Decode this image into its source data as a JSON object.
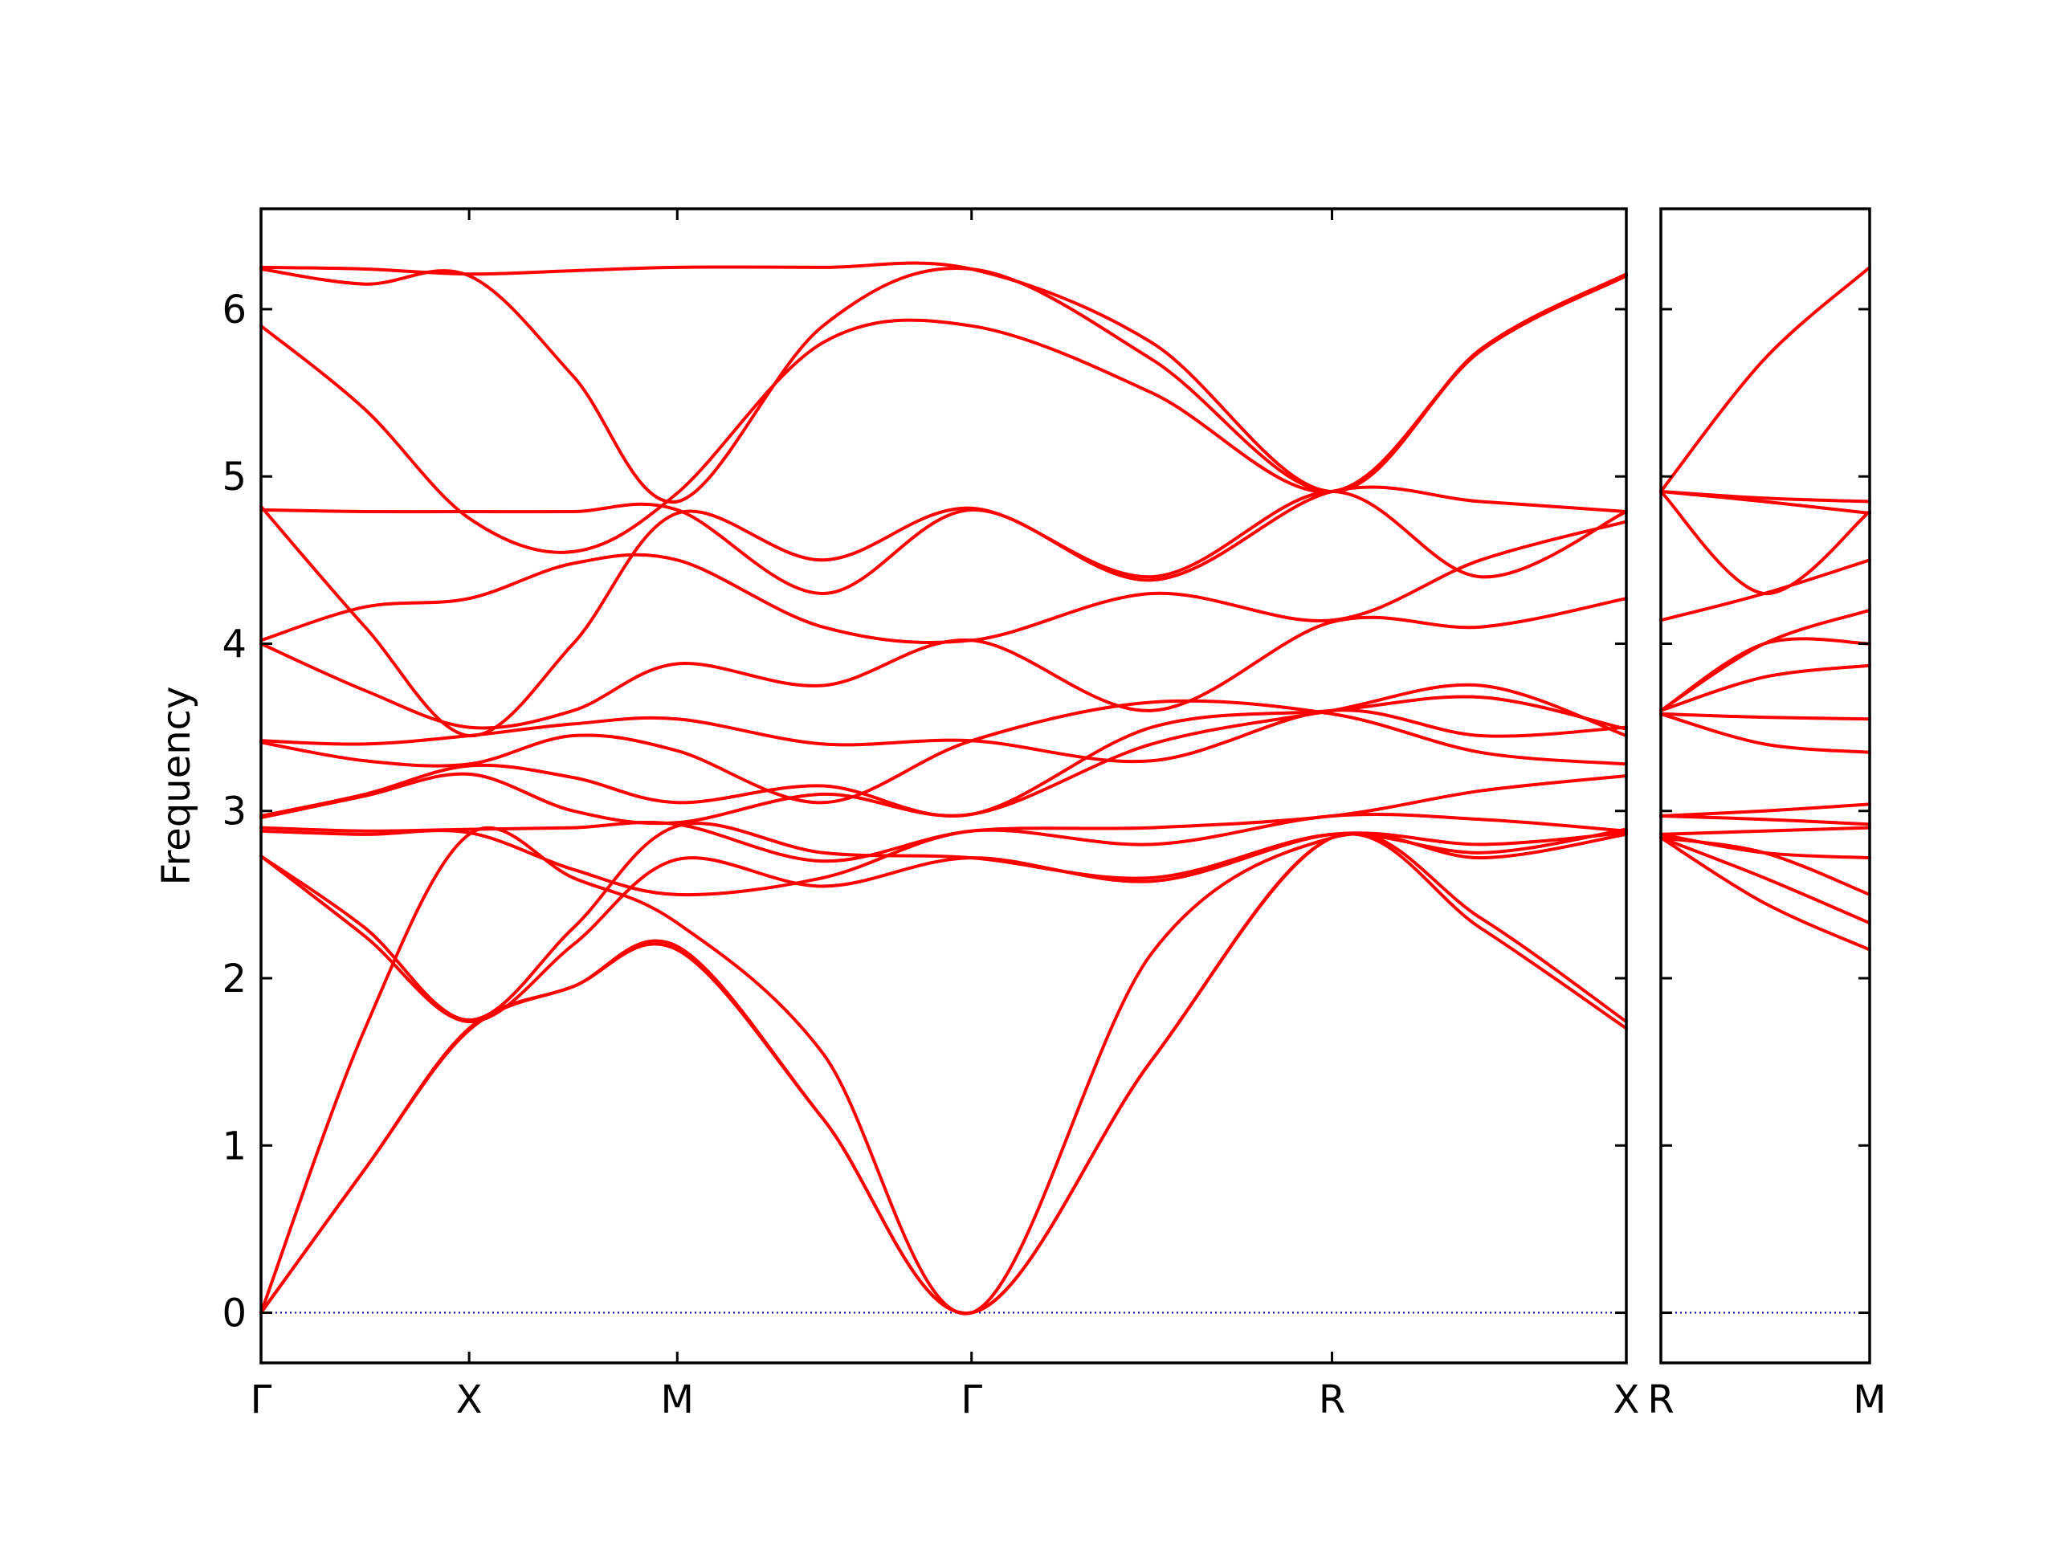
{
  "chart_data": {
    "type": "line",
    "title": "",
    "xlabel": "",
    "ylabel": "Frequency",
    "ylim": [
      -0.3,
      6.6
    ],
    "yticks": [
      0,
      1,
      2,
      3,
      4,
      5,
      6
    ],
    "grid": false,
    "legend": "none",
    "colors": {
      "bands": "#ff0000",
      "zero_line": "#0000aa",
      "frame": "#000000"
    },
    "panels": [
      {
        "name": "",
        "kpoints": [
          {
            "label": "Γ",
            "x": 0
          },
          {
            "label": "X",
            "x": 0.5
          },
          {
            "label": "M",
            "x": 1.0
          },
          {
            "label": "Γ",
            "x": 1.7071
          },
          {
            "label": "R",
            "x": 2.5731
          },
          {
            "label": "X",
            "x": 3.2802
          }
        ],
        "series": [
          {
            "x": [
              0,
              0.25,
              0.5,
              0.75,
              1.0,
              1.35,
              1.7071,
              2.14,
              2.5731,
              2.93,
              3.2802
            ],
            "y": [
              0,
              0.86,
              1.69,
              1.95,
              2.17,
              1.16,
              0,
              1.51,
              2.84,
              2.3,
              1.7
            ]
          },
          {
            "x": [
              0,
              0.25,
              0.5,
              0.75,
              1.0,
              1.35,
              1.7071,
              2.14,
              2.5731,
              2.93,
              3.2802
            ],
            "y": [
              0,
              0.86,
              1.7,
              1.95,
              2.19,
              1.16,
              0,
              1.51,
              2.84,
              2.36,
              1.74
            ]
          },
          {
            "x": [
              0,
              0.25,
              0.5,
              0.75,
              1.0,
              1.35,
              1.7071,
              2.14,
              2.5731,
              2.93,
              3.2802
            ],
            "y": [
              0,
              1.7,
              2.86,
              2.6,
              2.33,
              1.55,
              0,
              2.15,
              2.84,
              2.72,
              2.86
            ]
          },
          {
            "x": [
              0,
              0.25,
              0.5,
              0.75,
              1.0,
              1.35,
              1.7071,
              2.14,
              2.5731,
              2.93,
              3.2802
            ],
            "y": [
              2.73,
              2.25,
              1.74,
              2.2,
              2.71,
              2.55,
              2.72,
              2.58,
              2.86,
              2.8,
              2.87
            ]
          },
          {
            "x": [
              0,
              0.25,
              0.5,
              0.75,
              1.0,
              1.35,
              1.7071,
              2.14,
              2.5731,
              2.93,
              3.2802
            ],
            "y": [
              2.73,
              2.3,
              1.75,
              2.3,
              2.91,
              2.75,
              2.72,
              2.6,
              2.86,
              2.75,
              2.89
            ]
          },
          {
            "x": [
              0,
              0.25,
              0.5,
              0.75,
              1.0,
              1.35,
              1.7071,
              2.14,
              2.5731,
              2.93,
              3.2802
            ],
            "y": [
              2.88,
              2.86,
              2.87,
              2.65,
              2.5,
              2.6,
              2.88,
              2.8,
              2.97,
              2.95,
              2.88
            ]
          },
          {
            "x": [
              0,
              0.25,
              0.5,
              0.75,
              1.0,
              1.35,
              1.7071,
              2.14,
              2.5731,
              2.93,
              3.2802
            ],
            "y": [
              2.9,
              2.88,
              2.89,
              2.9,
              2.92,
              2.7,
              2.88,
              2.9,
              2.97,
              3.12,
              3.21
            ]
          },
          {
            "x": [
              0,
              0.25,
              0.5,
              0.75,
              1.0,
              1.35,
              1.7071,
              2.14,
              2.5731,
              2.93,
              3.2802
            ],
            "y": [
              2.96,
              3.09,
              3.22,
              3.0,
              2.93,
              3.1,
              2.98,
              3.4,
              3.6,
              3.75,
              3.45
            ]
          },
          {
            "x": [
              0,
              0.25,
              0.5,
              0.75,
              1.0,
              1.35,
              1.7071,
              2.14,
              2.5731,
              2.93,
              3.2802
            ],
            "y": [
              2.97,
              3.1,
              3.27,
              3.2,
              3.05,
              3.15,
              2.98,
              3.5,
              3.6,
              3.68,
              3.49
            ]
          },
          {
            "x": [
              0,
              0.25,
              0.5,
              0.75,
              1.0,
              1.35,
              1.7071,
              2.14,
              2.5731,
              2.93,
              3.2802
            ],
            "y": [
              3.41,
              3.3,
              3.28,
              3.45,
              3.36,
              3.05,
              3.42,
              3.65,
              3.58,
              3.35,
              3.28
            ]
          },
          {
            "x": [
              0,
              0.25,
              0.5,
              0.75,
              1.0,
              1.35,
              1.7071,
              2.14,
              2.5731,
              2.93,
              3.2802
            ],
            "y": [
              3.42,
              3.4,
              3.45,
              3.52,
              3.55,
              3.4,
              3.42,
              3.3,
              3.6,
              3.45,
              3.5
            ]
          },
          {
            "x": [
              0,
              0.25,
              0.5,
              0.75,
              1.0,
              1.35,
              1.7071,
              2.14,
              2.5731,
              2.93,
              3.2802
            ],
            "y": [
              4.0,
              3.72,
              3.5,
              3.6,
              3.88,
              3.75,
              4.02,
              3.6,
              4.13,
              4.1,
              4.27
            ]
          },
          {
            "x": [
              0,
              0.25,
              0.5,
              0.75,
              1.0,
              1.35,
              1.7071,
              2.14,
              2.5731,
              2.93,
              3.2802
            ],
            "y": [
              4.02,
              4.22,
              4.27,
              4.48,
              4.5,
              4.1,
              4.02,
              4.3,
              4.14,
              4.5,
              4.73
            ]
          },
          {
            "x": [
              0,
              0.25,
              0.5,
              0.75,
              1.0,
              1.35,
              1.7071,
              2.14,
              2.5731,
              2.93,
              3.2802
            ],
            "y": [
              4.8,
              4.79,
              4.79,
              4.79,
              4.8,
              4.3,
              4.8,
              4.38,
              4.91,
              4.85,
              4.79
            ]
          },
          {
            "x": [
              0,
              0.25,
              0.5,
              0.75,
              1.0,
              1.35,
              1.7071,
              2.14,
              2.5731,
              2.93,
              3.2802
            ],
            "y": [
              4.82,
              4.1,
              3.45,
              4.0,
              4.78,
              4.5,
              4.81,
              4.4,
              4.91,
              4.4,
              4.79
            ]
          },
          {
            "x": [
              0,
              0.25,
              0.5,
              0.75,
              1.0,
              1.35,
              1.7071,
              2.14,
              2.5731,
              2.93,
              3.2802
            ],
            "y": [
              5.9,
              5.4,
              4.75,
              4.55,
              4.9,
              5.8,
              5.9,
              5.5,
              4.91,
              5.75,
              6.2
            ]
          },
          {
            "x": [
              0,
              0.25,
              0.5,
              0.75,
              1.0,
              1.35,
              1.7071,
              2.14,
              2.5731,
              2.93,
              3.2802
            ],
            "y": [
              6.24,
              6.15,
              6.2,
              5.6,
              4.85,
              5.9,
              6.24,
              5.7,
              4.91,
              5.75,
              6.2
            ]
          },
          {
            "x": [
              0,
              0.25,
              0.5,
              0.75,
              1.0,
              1.35,
              1.7071,
              2.14,
              2.5731,
              2.93,
              3.2802
            ],
            "y": [
              6.25,
              6.24,
              6.21,
              6.23,
              6.25,
              6.25,
              6.24,
              5.8,
              4.91,
              5.76,
              6.21
            ]
          }
        ]
      },
      {
        "name": "",
        "kpoints": [
          {
            "label": "R",
            "x": 0
          },
          {
            "label": "M",
            "x": 0.7071
          }
        ],
        "series": [
          {
            "x": [
              0,
              0.35,
              0.7071
            ],
            "y": [
              2.84,
              2.45,
              2.17
            ]
          },
          {
            "x": [
              0,
              0.35,
              0.7071
            ],
            "y": [
              2.84,
              2.6,
              2.33
            ]
          },
          {
            "x": [
              0,
              0.35,
              0.7071
            ],
            "y": [
              2.84,
              2.75,
              2.5
            ]
          },
          {
            "x": [
              0,
              0.35,
              0.7071
            ],
            "y": [
              2.86,
              2.75,
              2.72
            ]
          },
          {
            "x": [
              0,
              0.35,
              0.7071
            ],
            "y": [
              2.86,
              2.88,
              2.9
            ]
          },
          {
            "x": [
              0,
              0.35,
              0.7071
            ],
            "y": [
              2.97,
              2.95,
              2.92
            ]
          },
          {
            "x": [
              0,
              0.35,
              0.7071
            ],
            "y": [
              2.97,
              3.0,
              3.04
            ]
          },
          {
            "x": [
              0,
              0.35,
              0.7071
            ],
            "y": [
              3.58,
              3.4,
              3.35
            ]
          },
          {
            "x": [
              0,
              0.35,
              0.7071
            ],
            "y": [
              3.58,
              3.56,
              3.55
            ]
          },
          {
            "x": [
              0,
              0.35,
              0.7071
            ],
            "y": [
              3.6,
              3.8,
              3.87
            ]
          },
          {
            "x": [
              0,
              0.35,
              0.7071
            ],
            "y": [
              3.6,
              4.0,
              4.0
            ]
          },
          {
            "x": [
              0,
              0.35,
              0.7071
            ],
            "y": [
              3.6,
              4.0,
              4.2
            ]
          },
          {
            "x": [
              0,
              0.35,
              0.7071
            ],
            "y": [
              4.14,
              4.3,
              4.5
            ]
          },
          {
            "x": [
              0,
              0.35,
              0.7071
            ],
            "y": [
              4.91,
              4.3,
              4.79
            ]
          },
          {
            "x": [
              0,
              0.35,
              0.7071
            ],
            "y": [
              4.91,
              4.85,
              4.78
            ]
          },
          {
            "x": [
              0,
              0.35,
              0.7071
            ],
            "y": [
              4.91,
              4.87,
              4.85
            ]
          },
          {
            "x": [
              0,
              0.35,
              0.7071
            ],
            "y": [
              4.91,
              5.7,
              6.25
            ]
          }
        ]
      }
    ]
  }
}
